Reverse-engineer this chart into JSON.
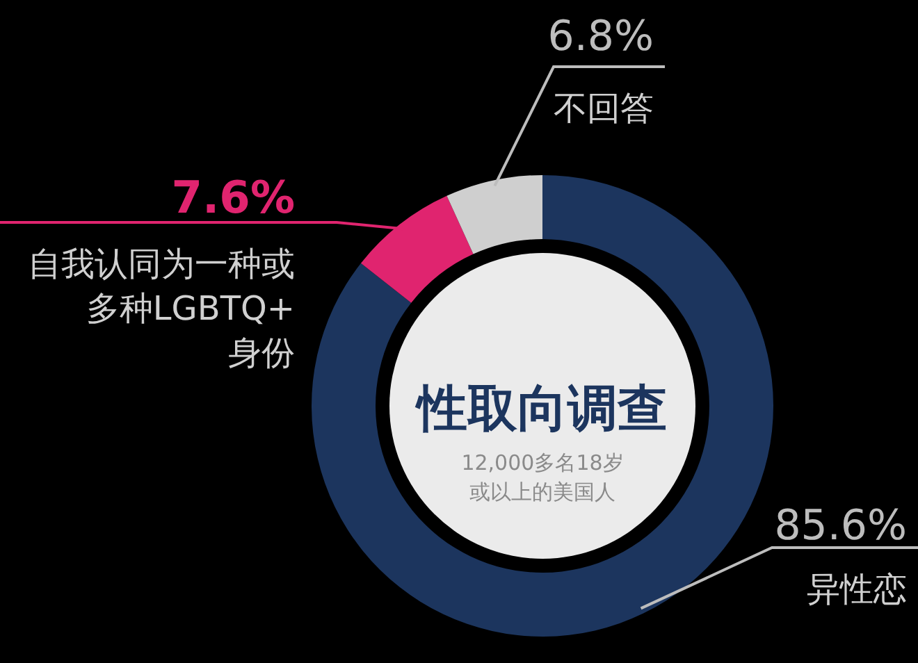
{
  "chart_data": {
    "type": "donut",
    "title": "性取向调查",
    "subtitle": "12,000多名18岁或以上的美国人",
    "categories": [
      "异性恋",
      "自我认同为一种或多种LGBTQ+身份",
      "不回答"
    ],
    "values": [
      85.6,
      7.6,
      6.8
    ],
    "colors": [
      "#1c355e",
      "#e0246f",
      "#cfcfcf"
    ],
    "value_labels": [
      "85.6%",
      "7.6%",
      "6.8%"
    ]
  }
}
